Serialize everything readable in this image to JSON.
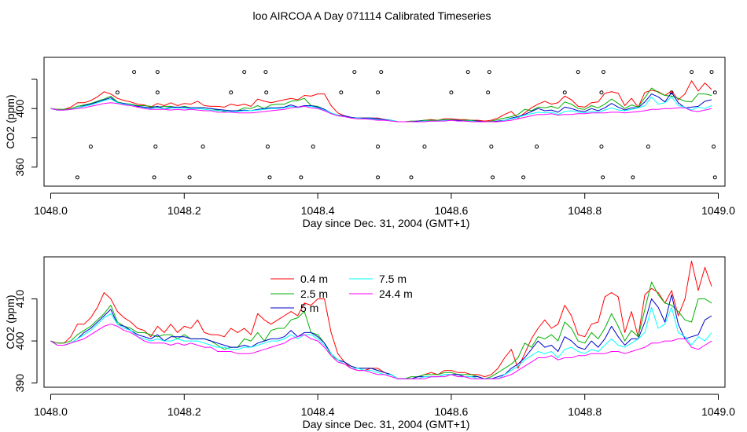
{
  "figure": {
    "title": "loo AIRCOA A  Day 071114  Calibrated Timeseries"
  },
  "chart_data": [
    {
      "type": "line",
      "panel": "top",
      "xlabel": "Day since Dec. 31, 2004 (GMT+1)",
      "ylabel": "CO2 (ppm)",
      "xlim": [
        1047.99,
        1049.01
      ],
      "ylim": [
        347,
        435
      ],
      "x_ticks": [
        1048.0,
        1048.2,
        1048.4,
        1048.6,
        1048.8,
        1049.0
      ],
      "x_tick_labels": [
        "1048.0",
        "1048.2",
        "1048.4",
        "1048.6",
        "1048.8",
        "1049.0"
      ],
      "y_ticks": [
        360,
        380,
        400,
        420
      ],
      "y_tick_labels": [
        "360",
        "",
        "400",
        ""
      ],
      "grid": false,
      "colors": {
        "0.4 m": "#ff0000",
        "2.5 m": "#00b000",
        "5 m": "#0000cc",
        "7.5 m": "#00ffff",
        "24.4 m": "#ff00ff"
      },
      "markers": {
        "row_425": [
          1048.125,
          1048.16,
          1048.29,
          1048.322,
          1048.455,
          1048.495,
          1048.625,
          1048.657,
          1048.79,
          1048.828,
          1048.96,
          1048.99
        ],
        "row_411": [
          1048.1,
          1048.16,
          1048.27,
          1048.323,
          1048.435,
          1048.49,
          1048.6,
          1048.655,
          1048.77,
          1048.825,
          1048.93,
          1048.995
        ],
        "row_374": [
          1048.06,
          1048.157,
          1048.228,
          1048.325,
          1048.393,
          1048.49,
          1048.56,
          1048.66,
          1048.728,
          1048.825,
          1048.895,
          1048.993
        ],
        "row_353": [
          1048.04,
          1048.155,
          1048.208,
          1048.328,
          1048.375,
          1048.49,
          1048.54,
          1048.662,
          1048.708,
          1048.827,
          1048.872,
          1048.995
        ]
      }
    },
    {
      "type": "line",
      "panel": "bottom",
      "xlabel": "Day since Dec. 31, 2004 (GMT+1)",
      "ylabel": "CO2 (ppm)",
      "xlim": [
        1047.99,
        1049.01
      ],
      "ylim": [
        389,
        420
      ],
      "x_ticks": [
        1048.0,
        1048.2,
        1048.4,
        1048.6,
        1048.8,
        1049.0
      ],
      "x_tick_labels": [
        "1048.0",
        "1048.2",
        "1048.4",
        "1048.6",
        "1048.8",
        "1049.0"
      ],
      "y_ticks": [
        390,
        400,
        410
      ],
      "y_tick_labels": [
        "390",
        "400",
        "410"
      ],
      "grid": false,
      "legend_position": "top-left-center",
      "x": [
        1048.0,
        1048.01,
        1048.02,
        1048.03,
        1048.04,
        1048.05,
        1048.06,
        1048.07,
        1048.08,
        1048.09,
        1048.1,
        1048.11,
        1048.12,
        1048.13,
        1048.14,
        1048.15,
        1048.16,
        1048.17,
        1048.18,
        1048.19,
        1048.2,
        1048.21,
        1048.22,
        1048.23,
        1048.24,
        1048.25,
        1048.26,
        1048.27,
        1048.28,
        1048.29,
        1048.3,
        1048.31,
        1048.32,
        1048.33,
        1048.34,
        1048.35,
        1048.36,
        1048.37,
        1048.38,
        1048.39,
        1048.4,
        1048.41,
        1048.42,
        1048.43,
        1048.44,
        1048.45,
        1048.46,
        1048.47,
        1048.48,
        1048.49,
        1048.5,
        1048.51,
        1048.52,
        1048.53,
        1048.54,
        1048.55,
        1048.56,
        1048.57,
        1048.58,
        1048.59,
        1048.6,
        1048.61,
        1048.62,
        1048.63,
        1048.64,
        1048.65,
        1048.66,
        1048.67,
        1048.68,
        1048.69,
        1048.7,
        1048.71,
        1048.72,
        1048.73,
        1048.74,
        1048.75,
        1048.76,
        1048.77,
        1048.78,
        1048.79,
        1048.8,
        1048.81,
        1048.82,
        1048.83,
        1048.84,
        1048.85,
        1048.86,
        1048.87,
        1048.88,
        1048.89,
        1048.9,
        1048.91,
        1048.92,
        1048.93,
        1048.94,
        1048.95,
        1048.96,
        1048.97,
        1048.98,
        1048.99
      ],
      "series": [
        {
          "name": "0.4 m",
          "color": "#ff0000",
          "values": [
            400.0,
            399.5,
            399.5,
            401.0,
            404.0,
            404.0,
            405.5,
            408.0,
            411.5,
            410.0,
            407.0,
            405.5,
            404.5,
            403.0,
            402.5,
            401.0,
            403.5,
            402.0,
            404.0,
            402.0,
            403.5,
            403.0,
            405.0,
            402.0,
            401.5,
            401.5,
            401.0,
            403.0,
            402.0,
            403.0,
            401.5,
            406.5,
            405.0,
            404.0,
            405.0,
            406.0,
            407.0,
            406.0,
            409.0,
            408.5,
            410.0,
            410.0,
            402.0,
            397.0,
            395.0,
            393.5,
            393.0,
            393.0,
            393.5,
            393.5,
            392.5,
            392.0,
            391.0,
            391.0,
            391.0,
            391.5,
            392.0,
            392.5,
            392.0,
            393.0,
            393.0,
            392.5,
            392.5,
            392.0,
            392.0,
            391.5,
            392.0,
            393.5,
            396.0,
            398.0,
            393.5,
            397.0,
            400.5,
            403.0,
            405.0,
            403.0,
            404.0,
            408.5,
            406.0,
            401.5,
            401.0,
            404.0,
            404.5,
            410.5,
            411.5,
            410.5,
            402.0,
            407.0,
            401.0,
            411.0,
            412.5,
            411.5,
            409.0,
            412.0,
            406.0,
            410.0,
            419.0,
            412.0,
            417.5,
            413.0
          ]
        },
        {
          "name": "2.5 m",
          "color": "#00b000",
          "values": [
            400.0,
            399.5,
            399.5,
            400.0,
            401.5,
            402.5,
            403.5,
            405.0,
            406.5,
            408.5,
            404.5,
            403.5,
            403.0,
            402.0,
            402.0,
            401.5,
            401.0,
            401.5,
            401.5,
            400.5,
            401.5,
            400.5,
            400.5,
            400.5,
            400.0,
            399.0,
            398.0,
            398.5,
            398.5,
            400.5,
            400.0,
            402.0,
            400.0,
            402.5,
            403.0,
            403.0,
            405.0,
            405.5,
            407.0,
            402.0,
            401.5,
            399.5,
            396.5,
            395.5,
            395.0,
            394.0,
            393.5,
            393.5,
            393.5,
            393.0,
            392.5,
            392.0,
            391.0,
            391.0,
            391.5,
            391.5,
            392.0,
            392.0,
            392.0,
            392.5,
            392.5,
            392.0,
            392.0,
            392.0,
            391.5,
            391.0,
            391.5,
            392.5,
            393.5,
            394.5,
            396.0,
            399.5,
            398.5,
            401.0,
            400.5,
            401.5,
            400.0,
            404.5,
            403.0,
            400.0,
            399.5,
            402.0,
            400.5,
            403.0,
            406.5,
            403.5,
            400.0,
            402.5,
            401.0,
            407.5,
            414.0,
            411.0,
            409.0,
            408.5,
            407.0,
            405.0,
            404.5,
            410.0,
            410.0,
            409.0
          ]
        },
        {
          "name": "5 m",
          "color": "#0000cc",
          "values": [
            400.0,
            399.0,
            399.0,
            399.5,
            400.5,
            402.0,
            403.0,
            404.5,
            406.0,
            407.5,
            404.0,
            403.5,
            402.5,
            401.5,
            401.0,
            400.5,
            401.5,
            400.0,
            401.0,
            401.0,
            401.0,
            400.5,
            400.5,
            400.5,
            400.0,
            399.5,
            399.0,
            398.5,
            398.5,
            399.0,
            398.5,
            399.5,
            400.0,
            400.5,
            400.5,
            401.0,
            402.5,
            401.0,
            402.0,
            402.0,
            401.0,
            399.5,
            397.0,
            395.5,
            395.0,
            394.0,
            393.5,
            393.5,
            393.5,
            393.0,
            392.5,
            392.0,
            391.0,
            391.0,
            391.0,
            391.5,
            391.5,
            391.5,
            391.5,
            392.0,
            392.0,
            392.0,
            391.5,
            391.5,
            391.5,
            391.0,
            391.0,
            391.5,
            392.0,
            393.5,
            394.5,
            396.0,
            398.0,
            400.0,
            398.5,
            399.0,
            397.5,
            401.0,
            400.0,
            398.5,
            398.0,
            400.0,
            398.5,
            400.5,
            403.5,
            401.0,
            399.0,
            400.5,
            400.5,
            404.5,
            410.0,
            408.0,
            404.5,
            411.0,
            404.0,
            400.5,
            401.0,
            401.5,
            405.0,
            406.0
          ]
        },
        {
          "name": "7.5 m",
          "color": "#00ffff",
          "values": [
            400.0,
            399.0,
            399.0,
            399.5,
            400.5,
            401.5,
            402.5,
            404.0,
            405.5,
            406.5,
            404.0,
            403.0,
            402.5,
            401.0,
            400.5,
            400.0,
            400.5,
            400.0,
            400.0,
            400.5,
            400.0,
            400.0,
            400.0,
            399.5,
            399.0,
            398.5,
            398.5,
            398.0,
            398.0,
            398.5,
            398.5,
            399.0,
            399.5,
            400.0,
            400.0,
            400.5,
            401.5,
            400.5,
            401.5,
            401.5,
            400.5,
            399.0,
            397.0,
            395.5,
            394.5,
            393.5,
            393.5,
            393.0,
            393.0,
            392.5,
            392.0,
            392.0,
            391.0,
            391.0,
            391.0,
            391.0,
            391.5,
            391.5,
            391.5,
            392.0,
            392.0,
            391.5,
            391.5,
            391.5,
            391.0,
            391.0,
            391.0,
            391.0,
            392.0,
            393.0,
            394.0,
            395.5,
            396.5,
            397.5,
            397.0,
            397.5,
            396.0,
            398.0,
            398.5,
            397.5,
            397.0,
            398.0,
            397.5,
            399.0,
            400.5,
            399.0,
            398.5,
            399.5,
            400.5,
            402.0,
            408.0,
            403.0,
            404.0,
            408.0,
            402.0,
            401.0,
            399.0,
            401.0,
            400.0,
            402.0
          ]
        },
        {
          "name": "24.4 m",
          "color": "#ff00ff",
          "values": [
            400.0,
            399.0,
            399.0,
            399.5,
            400.0,
            400.5,
            401.5,
            402.5,
            403.5,
            404.0,
            403.5,
            402.5,
            402.0,
            401.0,
            400.0,
            399.5,
            399.5,
            399.5,
            399.0,
            399.5,
            399.0,
            399.5,
            399.0,
            398.5,
            398.5,
            397.5,
            397.5,
            397.5,
            397.0,
            397.0,
            397.0,
            397.5,
            398.0,
            398.5,
            399.0,
            399.5,
            400.5,
            401.0,
            401.5,
            400.5,
            400.0,
            398.5,
            396.5,
            395.0,
            394.5,
            393.5,
            393.0,
            393.0,
            392.5,
            392.0,
            392.0,
            391.5,
            391.0,
            391.0,
            391.0,
            391.0,
            391.0,
            391.5,
            391.5,
            391.5,
            392.0,
            391.5,
            391.5,
            391.0,
            391.0,
            391.0,
            391.0,
            391.0,
            391.5,
            392.0,
            393.0,
            394.0,
            395.0,
            396.0,
            396.0,
            396.5,
            395.5,
            396.0,
            396.0,
            396.5,
            396.5,
            397.0,
            397.0,
            397.0,
            397.5,
            397.5,
            397.0,
            397.5,
            398.0,
            398.5,
            399.5,
            399.5,
            400.0,
            400.0,
            400.5,
            400.5,
            398.5,
            398.0,
            399.0,
            400.0
          ]
        }
      ]
    }
  ]
}
